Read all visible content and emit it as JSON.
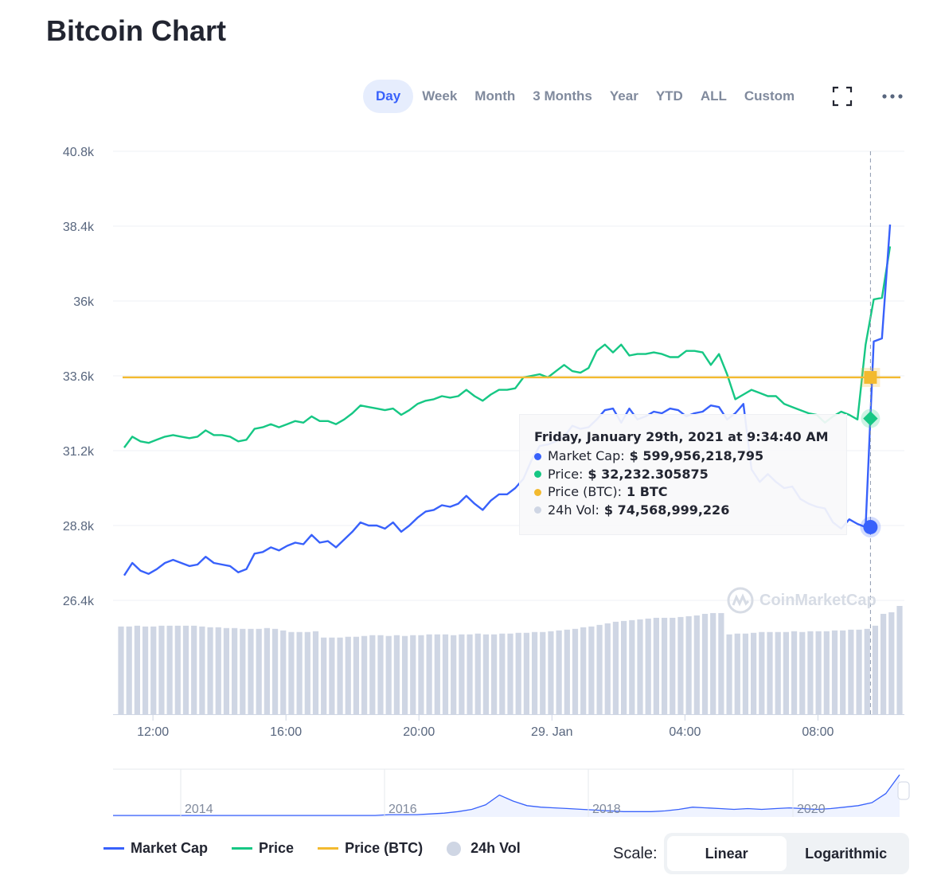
{
  "page": {
    "title": "Bitcoin Chart"
  },
  "ranges": [
    "Day",
    "Week",
    "Month",
    "3 Months",
    "Year",
    "YTD",
    "ALL",
    "Custom"
  ],
  "active_range": "Day",
  "icons": {
    "fullscreen": "fullscreen-icon",
    "more": "more-options-icon"
  },
  "watermark": "CoinMarketCap",
  "tooltip": {
    "title": "Friday, January 29th, 2021 at 9:34:40 AM",
    "rows": [
      {
        "label": "Market Cap:",
        "value": "$ 599,956,218,795",
        "color": "#3861fb"
      },
      {
        "label": "Price:",
        "value": "$ 32,232.305875",
        "color": "#16c784"
      },
      {
        "label": "Price (BTC):",
        "value": "1 BTC",
        "color": "#f3ba2f"
      },
      {
        "label": "24h Vol:",
        "value": "$ 74,568,999,226",
        "color": "#cfd6e4"
      }
    ]
  },
  "legend": [
    {
      "label": "Market Cap",
      "color": "#3861fb",
      "kind": "line"
    },
    {
      "label": "Price",
      "color": "#16c784",
      "kind": "line"
    },
    {
      "label": "Price (BTC)",
      "color": "#f3ba2f",
      "kind": "line"
    },
    {
      "label": "24h Vol",
      "color": "#cfd6e4",
      "kind": "dot"
    }
  ],
  "scale": {
    "label": "Scale:",
    "options": [
      "Linear",
      "Logarithmic"
    ],
    "active": "Linear"
  },
  "chart_data": {
    "type": "line",
    "y_ticks": [
      "40.8k",
      "38.4k",
      "36k",
      "33.6k",
      "31.2k",
      "28.8k",
      "26.4k"
    ],
    "ylim": [
      26400,
      40800
    ],
    "x_ticks": [
      {
        "label": "12:00",
        "hour": 12
      },
      {
        "label": "16:00",
        "hour": 16
      },
      {
        "label": "20:00",
        "hour": 20
      },
      {
        "label": "29. Jan",
        "hour": 24
      },
      {
        "label": "04:00",
        "hour": 28
      },
      {
        "label": "08:00",
        "hour": 32
      }
    ],
    "xlim_hours": [
      10.8,
      34.6
    ],
    "crosshair_hour": 33.58,
    "price_btc_level": 33550,
    "colors": {
      "market_cap": "#3861fb",
      "price": "#16c784",
      "price_btc": "#f3ba2f",
      "volume": "#cfd6e4"
    },
    "series": [
      {
        "name": "Market Cap",
        "values": [
          27200,
          27600,
          27350,
          27250,
          27400,
          27600,
          27700,
          27600,
          27500,
          27550,
          27800,
          27600,
          27550,
          27500,
          27300,
          27400,
          27900,
          27950,
          28100,
          28000,
          28150,
          28250,
          28200,
          28500,
          28250,
          28300,
          28100,
          28350,
          28600,
          28900,
          28800,
          28800,
          28700,
          28900,
          28600,
          28800,
          29050,
          29250,
          29300,
          29450,
          29400,
          29500,
          29750,
          29500,
          29300,
          29600,
          29800,
          29800,
          30000,
          30300,
          30900,
          31350,
          31400,
          31500,
          31650,
          32000,
          31900,
          31950,
          32200,
          32500,
          32550,
          32100,
          32550,
          32200,
          32300,
          32450,
          32400,
          32550,
          32500,
          32300,
          32400,
          32450,
          32650,
          32600,
          32200,
          32400,
          32700,
          30600,
          30200,
          30450,
          30200,
          30000,
          30050,
          29650,
          29500,
          29400,
          29350,
          28900,
          28700,
          29000,
          28850,
          28750,
          34700,
          34800,
          38450
        ]
      },
      {
        "name": "Price",
        "values": [
          31300,
          31650,
          31500,
          31450,
          31550,
          31650,
          31700,
          31650,
          31600,
          31650,
          31850,
          31700,
          31700,
          31650,
          31500,
          31550,
          31900,
          31950,
          32050,
          31950,
          32050,
          32150,
          32100,
          32300,
          32150,
          32150,
          32050,
          32200,
          32400,
          32650,
          32600,
          32550,
          32500,
          32550,
          32350,
          32500,
          32700,
          32800,
          32850,
          32950,
          32900,
          32950,
          33150,
          32950,
          32800,
          33000,
          33150,
          33150,
          33200,
          33550,
          33600,
          33650,
          33550,
          33750,
          33950,
          33750,
          33700,
          33850,
          34400,
          34600,
          34350,
          34600,
          34250,
          34300,
          34300,
          34350,
          34300,
          34200,
          34200,
          34400,
          34400,
          34350,
          33950,
          34300,
          33650,
          32850,
          33000,
          33150,
          33050,
          32950,
          32950,
          32700,
          32600,
          32500,
          32400,
          32350,
          32100,
          32300,
          32450,
          32350,
          32200,
          34600,
          36050,
          36100,
          37750
        ]
      },
      {
        "name": "24h Vol",
        "values": [
          1.11,
          1.11,
          1.12,
          1.11,
          1.11,
          1.12,
          1.12,
          1.12,
          1.12,
          1.12,
          1.11,
          1.1,
          1.1,
          1.09,
          1.09,
          1.08,
          1.08,
          1.08,
          1.09,
          1.08,
          1.06,
          1.04,
          1.04,
          1.04,
          1.05,
          0.97,
          0.97,
          0.97,
          0.98,
          0.98,
          0.99,
          1.0,
          1.0,
          0.99,
          1.0,
          0.99,
          1.0,
          1.0,
          1.01,
          1.01,
          1.01,
          1.0,
          1.01,
          1.01,
          1.02,
          1.01,
          1.01,
          1.02,
          1.02,
          1.03,
          1.03,
          1.04,
          1.04,
          1.05,
          1.06,
          1.07,
          1.08,
          1.1,
          1.11,
          1.13,
          1.15,
          1.17,
          1.18,
          1.19,
          1.2,
          1.21,
          1.22,
          1.22,
          1.22,
          1.23,
          1.24,
          1.25,
          1.27,
          1.28,
          1.28,
          1.01,
          1.02,
          1.02,
          1.03,
          1.04,
          1.04,
          1.04,
          1.04,
          1.05,
          1.04,
          1.05,
          1.05,
          1.05,
          1.06,
          1.06,
          1.07,
          1.07,
          1.08,
          1.12,
          1.27,
          1.29,
          1.37
        ]
      }
    ],
    "navigator": {
      "year_labels": [
        "2014",
        "2016",
        "2018",
        "2020"
      ],
      "values": [
        1,
        1,
        1,
        1,
        1,
        1,
        1,
        1,
        1,
        1,
        1,
        1,
        1,
        1,
        1,
        1,
        1,
        1,
        1,
        1,
        2,
        2,
        2,
        3,
        4,
        6,
        9,
        15,
        28,
        20,
        14,
        12,
        11,
        10,
        9,
        8,
        7,
        6,
        6,
        6,
        7,
        9,
        12,
        11,
        10,
        9,
        10,
        9,
        10,
        11,
        10,
        9,
        10,
        12,
        14,
        18,
        30,
        55
      ]
    }
  }
}
